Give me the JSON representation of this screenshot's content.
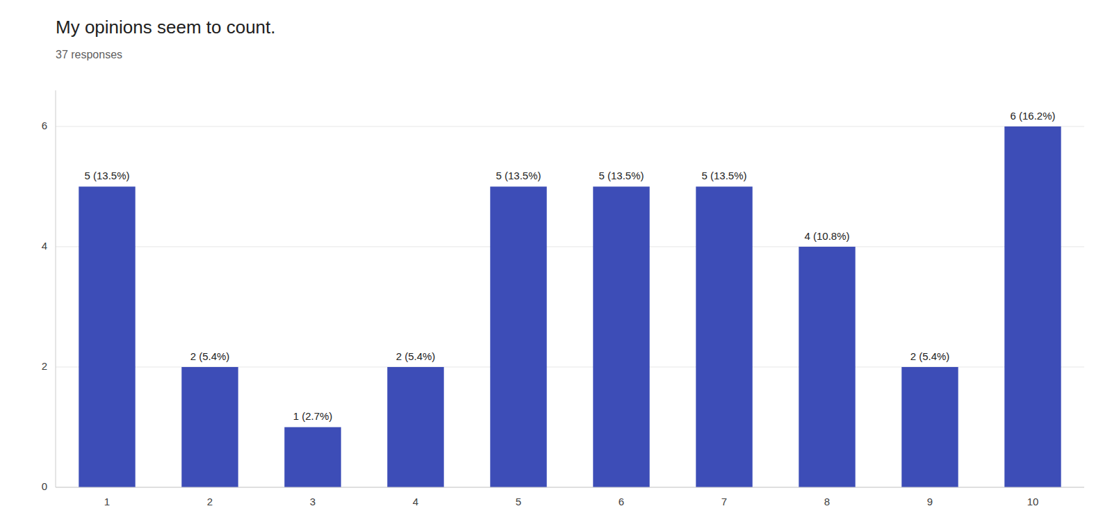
{
  "chart_data": {
    "type": "bar",
    "title": "My opinions seem to count.",
    "subtitle": "37 responses",
    "categories": [
      "1",
      "2",
      "3",
      "4",
      "5",
      "6",
      "7",
      "8",
      "9",
      "10"
    ],
    "values": [
      5,
      2,
      1,
      2,
      5,
      5,
      5,
      4,
      2,
      6
    ],
    "data_labels": true,
    "value_labels": [
      "5 (13.5%)",
      "2 (5.4%)",
      "1 (2.7%)",
      "2 (5.4%)",
      "5 (13.5%)",
      "5 (13.5%)",
      "5 (13.5%)",
      "4 (10.8%)",
      "2 (5.4%)",
      "6 (16.2%)"
    ],
    "color": "#3d4db7",
    "ylim": [
      0,
      6.6
    ],
    "yticks": [
      0,
      2,
      4,
      6
    ],
    "grid": true
  }
}
